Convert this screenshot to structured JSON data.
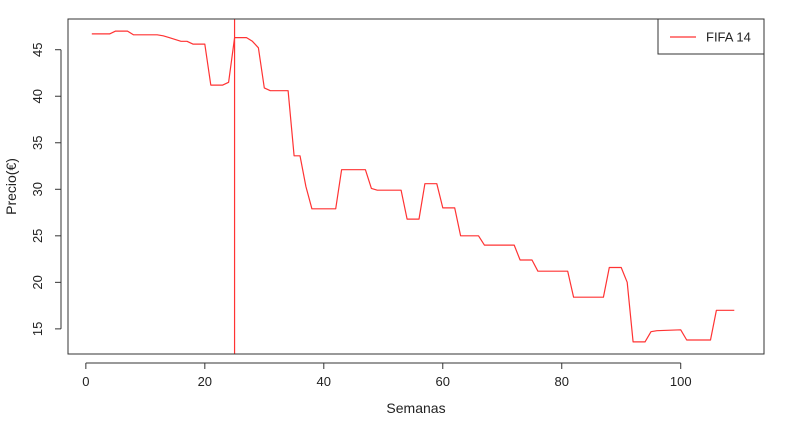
{
  "chart_data": {
    "type": "line",
    "xlabel": "Semanas",
    "ylabel": "Precio(€)",
    "xlim": [
      -3,
      114
    ],
    "ylim": [
      12.3,
      48.3
    ],
    "x_ticks": [
      0,
      20,
      40,
      60,
      80,
      100
    ],
    "y_ticks": [
      15,
      20,
      25,
      30,
      35,
      40,
      45
    ],
    "vline": {
      "x": 25,
      "color": "#ff3333"
    },
    "legend": {
      "position": "top-right",
      "entries": [
        "FIFA 14"
      ]
    },
    "series": [
      {
        "name": "FIFA 14",
        "color": "#ff3333",
        "x": [
          1,
          4,
          5,
          7,
          8,
          12,
          13,
          14,
          16,
          17,
          18,
          20,
          21,
          23,
          24,
          25,
          27,
          28,
          29,
          30,
          31,
          33,
          34,
          35,
          36,
          37,
          38,
          42,
          43,
          47,
          48,
          49,
          53,
          54,
          56,
          57,
          59,
          60,
          62,
          63,
          66,
          67,
          72,
          73,
          75,
          76,
          81,
          82,
          87,
          88,
          90,
          91,
          92,
          94,
          95,
          96,
          100,
          101,
          105,
          106,
          109
        ],
        "y": [
          46.7,
          46.7,
          47.0,
          47.0,
          46.6,
          46.6,
          46.5,
          46.3,
          45.9,
          45.9,
          45.6,
          45.6,
          41.2,
          41.2,
          41.5,
          46.3,
          46.3,
          45.9,
          45.2,
          40.9,
          40.6,
          40.6,
          40.6,
          33.6,
          33.6,
          30.3,
          27.9,
          27.9,
          32.1,
          32.1,
          30.1,
          29.9,
          29.9,
          26.8,
          26.8,
          30.6,
          30.6,
          28.0,
          28.0,
          25.0,
          25.0,
          24.0,
          24.0,
          22.4,
          22.4,
          21.2,
          21.2,
          18.4,
          18.4,
          21.6,
          21.6,
          20.0,
          13.6,
          13.6,
          14.7,
          14.8,
          14.9,
          13.8,
          13.8,
          17.0,
          17.0
        ]
      }
    ]
  }
}
